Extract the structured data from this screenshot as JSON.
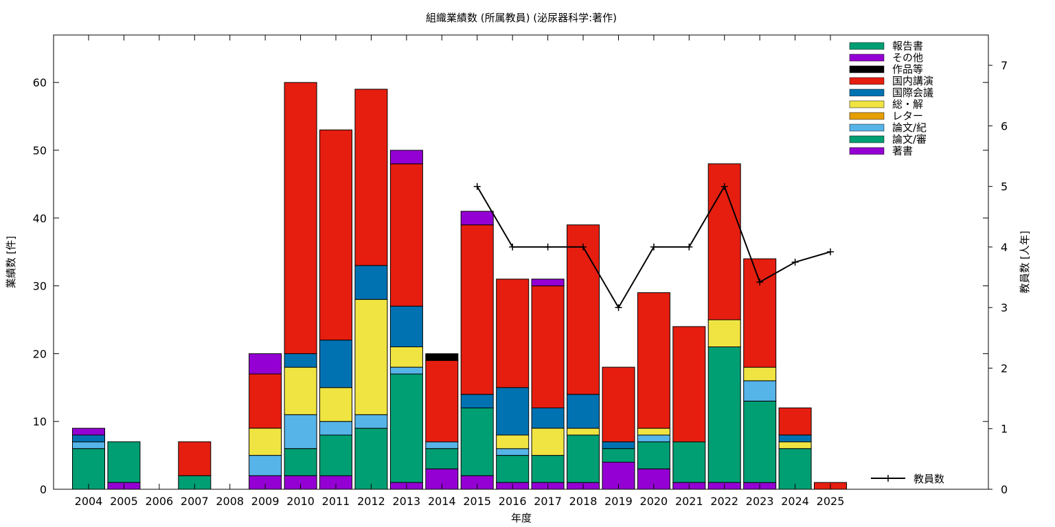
{
  "chart_data": {
    "type": "bar",
    "stacked": true,
    "title": "組織業績数 (所属教員) (泌尿器科学:著作)",
    "xlabel": "年度",
    "ylabel": "業績数 [件]",
    "y2label": "教員数 [人年]",
    "ylim": [
      0,
      67
    ],
    "y2lim": [
      0,
      7.5
    ],
    "yticks": [
      0,
      10,
      20,
      30,
      40,
      50,
      60
    ],
    "y2ticks": [
      0,
      1,
      2,
      3,
      4,
      5,
      6,
      7
    ],
    "grid": false,
    "legend_position": "top-right",
    "categories": [
      "2004",
      "2005",
      "2006",
      "2007",
      "2008",
      "2009",
      "2010",
      "2011",
      "2012",
      "2013",
      "2014",
      "2015",
      "2016",
      "2017",
      "2018",
      "2019",
      "2020",
      "2021",
      "2022",
      "2023",
      "2024",
      "2025"
    ],
    "series": [
      {
        "name": "著書",
        "color": "#9400d3",
        "values": [
          0,
          1,
          0,
          0,
          0,
          2,
          2,
          2,
          0,
          1,
          3,
          2,
          1,
          1,
          1,
          4,
          3,
          1,
          1,
          1,
          0,
          0
        ]
      },
      {
        "name": "論文/審",
        "color": "#009e73",
        "values": [
          6,
          6,
          0,
          2,
          0,
          0,
          4,
          6,
          9,
          16,
          3,
          10,
          4,
          4,
          7,
          2,
          4,
          6,
          20,
          12,
          6,
          0
        ]
      },
      {
        "name": "論文/紀",
        "color": "#56b4e9",
        "values": [
          1,
          0,
          0,
          0,
          0,
          3,
          5,
          2,
          2,
          1,
          1,
          0,
          1,
          0,
          0,
          0,
          1,
          0,
          0,
          3,
          0,
          0
        ]
      },
      {
        "name": "レター",
        "color": "#e69f00",
        "values": [
          0,
          0,
          0,
          0,
          0,
          0,
          0,
          0,
          0,
          0,
          0,
          0,
          0,
          0,
          0,
          0,
          0,
          0,
          0,
          0,
          0,
          0
        ]
      },
      {
        "name": "総・解",
        "color": "#f0e442",
        "values": [
          0,
          0,
          0,
          0,
          0,
          4,
          7,
          5,
          17,
          3,
          0,
          0,
          2,
          4,
          1,
          0,
          1,
          0,
          4,
          2,
          1,
          0
        ]
      },
      {
        "name": "国際会議",
        "color": "#0072b2",
        "values": [
          1,
          0,
          0,
          0,
          0,
          0,
          2,
          7,
          5,
          6,
          0,
          2,
          7,
          3,
          5,
          1,
          0,
          0,
          0,
          0,
          1,
          0
        ]
      },
      {
        "name": "国内講演",
        "color": "#e51e10",
        "values": [
          0,
          0,
          0,
          5,
          0,
          8,
          40,
          31,
          26,
          21,
          12,
          25,
          16,
          18,
          25,
          11,
          20,
          17,
          23,
          16,
          4,
          1
        ]
      },
      {
        "name": "作品等",
        "color": "#000000",
        "values": [
          0,
          0,
          0,
          0,
          0,
          0,
          0,
          0,
          0,
          0,
          1,
          0,
          0,
          0,
          0,
          0,
          0,
          0,
          0,
          0,
          0,
          0
        ]
      },
      {
        "name": "その他",
        "color": "#9400d3",
        "values": [
          1,
          0,
          0,
          0,
          0,
          3,
          0,
          0,
          0,
          2,
          0,
          2,
          0,
          1,
          0,
          0,
          0,
          0,
          0,
          0,
          0,
          0
        ]
      },
      {
        "name": "報告書",
        "color": "#009e73",
        "values": [
          0,
          0,
          0,
          0,
          0,
          0,
          0,
          0,
          0,
          0,
          0,
          0,
          0,
          0,
          0,
          0,
          0,
          0,
          0,
          0,
          0,
          0
        ]
      }
    ],
    "line_series": {
      "name": "教員数",
      "color": "#000000",
      "x": [
        "2015",
        "2016",
        "2017",
        "2018",
        "2019",
        "2020",
        "2021",
        "2022",
        "2023",
        "2024",
        "2025"
      ],
      "values": [
        5,
        4,
        4,
        4,
        3,
        4,
        4,
        5,
        3.42,
        3.75,
        3.92
      ]
    }
  }
}
